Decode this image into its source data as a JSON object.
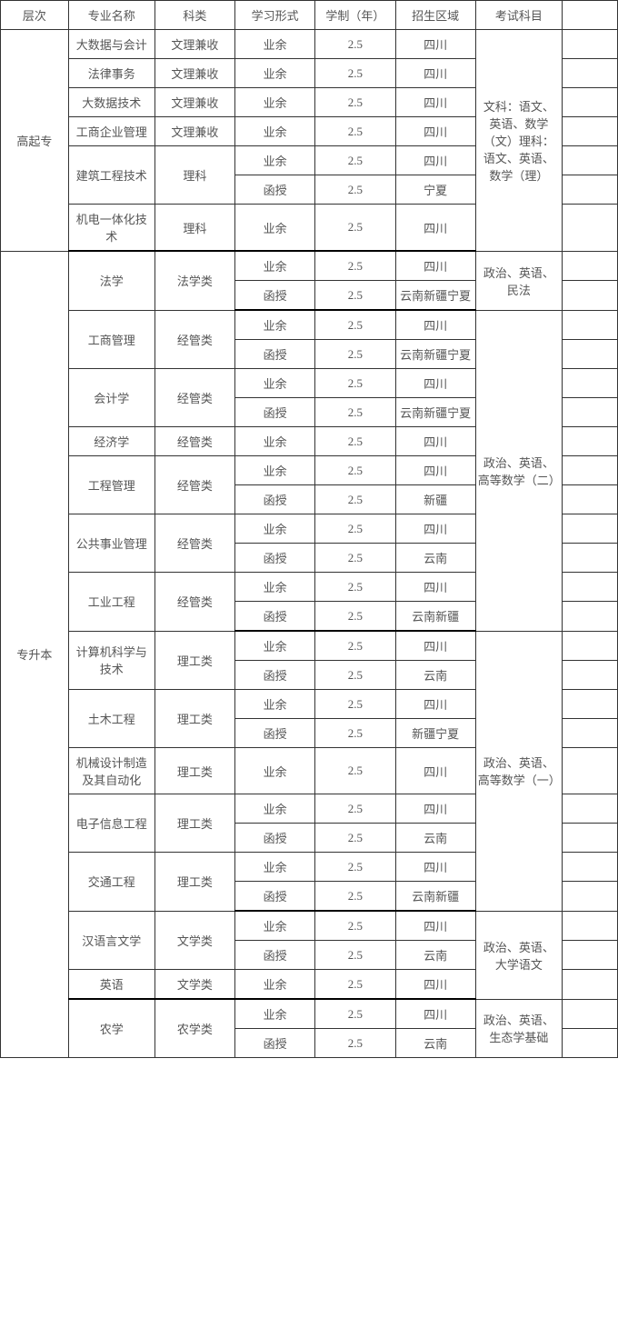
{
  "headers": {
    "level": "层次",
    "major": "专业名称",
    "category": "科类",
    "form": "学习形式",
    "duration": "学制（年）",
    "region": "招生区域",
    "subjects": "考试科目"
  },
  "levels": {
    "gqz": "高起专",
    "zsb": "专升本"
  },
  "categories": {
    "wljs": "文理兼收",
    "lk": "理科",
    "fxl": "法学类",
    "jgl": "经管类",
    "lgl": "理工类",
    "wxl": "文学类",
    "nxl": "农学类"
  },
  "forms": {
    "yy": "业余",
    "hs": "函授"
  },
  "duration": "2.5",
  "regions": {
    "sc": "四川",
    "nx": "宁夏",
    "yn": "云南",
    "xj": "新疆",
    "yn_xj_nx": "云南新疆宁夏",
    "yn_xj": "云南新疆",
    "xj_nx": "新疆宁夏"
  },
  "subjects": {
    "gqz": "文科：语文、英语、数学（文）理科：语文、英语、数学（理）",
    "fxl": "政治、英语、民法",
    "jgl": "政治、英语、高等数学（二）",
    "lgl": "政治、英语、高等数学（一）",
    "wxl": "政治、英语、大学语文",
    "nxl": "政治、英语、生态学基础"
  },
  "majors": {
    "dsjkj": "大数据与会计",
    "flsw": "法律事务",
    "dsjjs": "大数据技术",
    "gsqygl": "工商企业管理",
    "jzgcjs": "建筑工程技术",
    "jdythjs": "机电一体化技术",
    "fx": "法学",
    "gsgl": "工商管理",
    "kjx": "会计学",
    "jjx": "经济学",
    "gcgl": "工程管理",
    "ggsygl": "公共事业管理",
    "gygc": "工业工程",
    "jsjkxyjs": "计算机科学与技术",
    "tmgc": "土木工程",
    "jxsjzzjqzdh": "机械设计制造及其自动化",
    "dzxxgc": "电子信息工程",
    "jtgc": "交通工程",
    "hyywx": "汉语言文学",
    "yy": "英语",
    "nx": "农学"
  }
}
